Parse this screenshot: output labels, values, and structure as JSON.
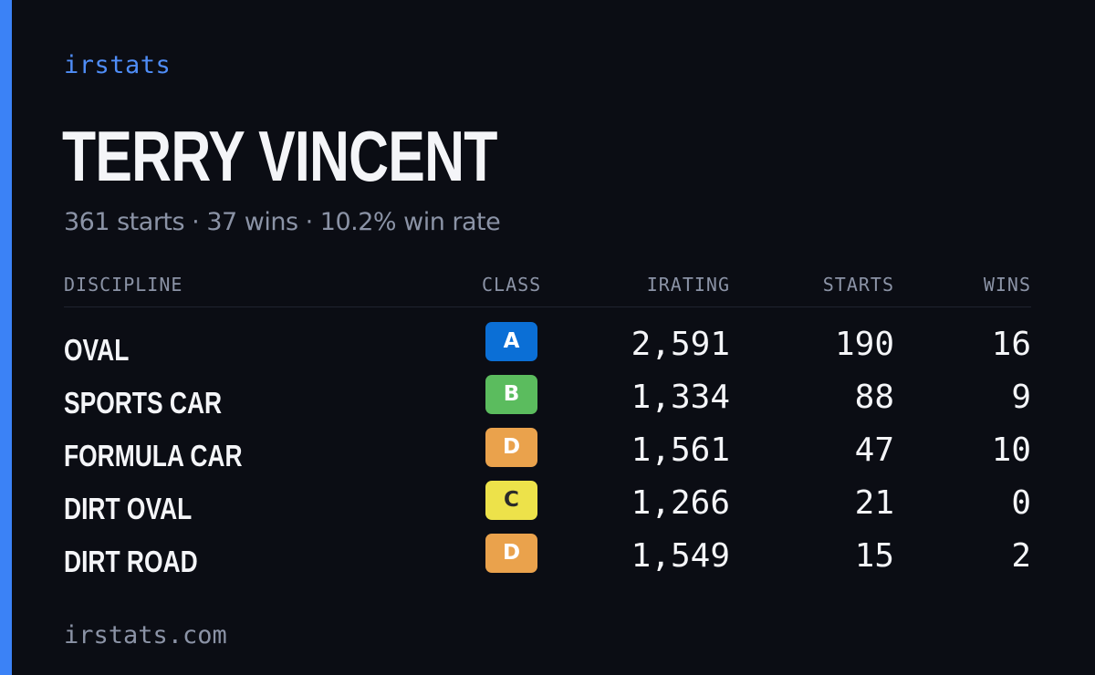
{
  "brand": "irstats",
  "driver": {
    "name": "TERRY VINCENT",
    "summary": "361 starts · 37 wins · 10.2% win rate"
  },
  "table": {
    "headers": {
      "discipline": "DISCIPLINE",
      "class": "CLASS",
      "irating": "IRATING",
      "starts": "STARTS",
      "wins": "WINS"
    },
    "rows": [
      {
        "discipline": "OVAL",
        "class": "A",
        "class_bg": "#0b6fd6",
        "class_fg": "#ffffff",
        "irating": "2,591",
        "starts": "190",
        "wins": "16"
      },
      {
        "discipline": "SPORTS CAR",
        "class": "B",
        "class_bg": "#5bbc5e",
        "class_fg": "#ffffff",
        "irating": "1,334",
        "starts": "88",
        "wins": "9"
      },
      {
        "discipline": "FORMULA CAR",
        "class": "D",
        "class_bg": "#eaa24c",
        "class_fg": "#ffffff",
        "irating": "1,561",
        "starts": "47",
        "wins": "10"
      },
      {
        "discipline": "DIRT OVAL",
        "class": "C",
        "class_bg": "#ede24a",
        "class_fg": "#2a2a2a",
        "irating": "1,266",
        "starts": "21",
        "wins": "0"
      },
      {
        "discipline": "DIRT ROAD",
        "class": "D",
        "class_bg": "#eaa24c",
        "class_fg": "#ffffff",
        "irating": "1,549",
        "starts": "15",
        "wins": "2"
      }
    ]
  },
  "footer": "irstats.com",
  "colors": {
    "background": "#0b0d14",
    "accent": "#3b82f6",
    "muted_text": "#8b93a6"
  }
}
